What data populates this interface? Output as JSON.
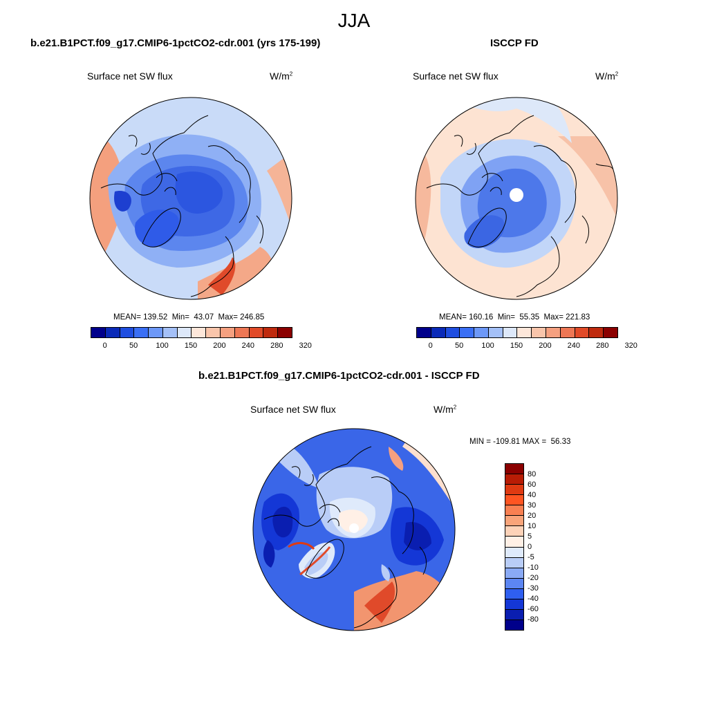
{
  "season": "JJA",
  "panels": [
    {
      "title": "b.e21.B1PCT.f09_g17.CMIP6-1pctCO2-cdr.001 (yrs 175-199)",
      "variable": "Surface net SW flux",
      "units_base": "W/m",
      "units_exp": "2",
      "stats": "MEAN= 139.52  Min=  43.07  Max= 246.85"
    },
    {
      "title": "ISCCP FD",
      "variable": "Surface net SW flux",
      "units_base": "W/m",
      "units_exp": "2",
      "stats": "MEAN= 160.16  Min=  55.35  Max= 221.83"
    },
    {
      "title": "b.e21.B1PCT.f09_g17.CMIP6-1pctCO2-cdr.001 - ISCCP FD",
      "variable": "Surface net SW flux",
      "units_base": "W/m",
      "units_exp": "2",
      "stats": "MIN = -109.81 MAX =  56.33"
    }
  ],
  "colorbar_top": {
    "ticks": [
      "0",
      "50",
      "100",
      "150",
      "200",
      "240",
      "280",
      "320"
    ],
    "colors": [
      "#00008b",
      "#0a2ab8",
      "#1f4ee0",
      "#3a6ff5",
      "#6d98f7",
      "#a4c0f7",
      "#dde8f9",
      "#fde7da",
      "#f9c5ab",
      "#f5a080",
      "#ee7755",
      "#e14a28",
      "#bf2a0e",
      "#8b0000"
    ]
  },
  "colorbar_diff": {
    "ticks": [
      "80",
      "60",
      "40",
      "30",
      "20",
      "10",
      "5",
      "0",
      "-5",
      "-10",
      "-20",
      "-30",
      "-40",
      "-60",
      "-80"
    ],
    "colors": [
      "#8b0000",
      "#b81c05",
      "#df3a12",
      "#ff5522",
      "#f98052",
      "#f9a47a",
      "#fdd2b8",
      "#fff0e6",
      "#dfeafb",
      "#b9cdf7",
      "#8aaaf5",
      "#5c86f2",
      "#2f5ff0",
      "#1437d6",
      "#0a1eb0",
      "#00008b"
    ]
  }
}
